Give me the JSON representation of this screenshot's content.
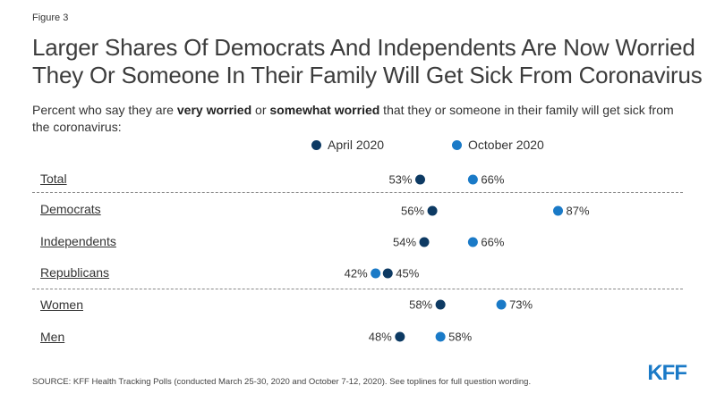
{
  "figure_label": "Figure 3",
  "title": "Larger Shares Of Democrats And Independents Are Now Worried They Or Someone In Their Family Will Get Sick From Coronavirus",
  "subtitle": {
    "part1": "Percent who say they are ",
    "bold1": "very worried",
    "part2": " or ",
    "bold2": "somewhat worried",
    "part3": " that they or someone in their family will get sick from the coronavirus:"
  },
  "colors": {
    "april": "#0d3a63",
    "october": "#1a7ac7"
  },
  "source": "SOURCE: KFF Health Tracking Polls (conducted March 25-30, 2020 and October 7-12, 2020). See toplines for full question wording.",
  "logo": "KFF",
  "chart_data": {
    "type": "scatter",
    "series": [
      {
        "name": "April 2020",
        "values": [
          53,
          56,
          54,
          45,
          58,
          48
        ]
      },
      {
        "name": "October 2020",
        "values": [
          66,
          87,
          66,
          42,
          73,
          58
        ]
      }
    ],
    "categories": [
      "Total",
      "Democrats",
      "Independents",
      "Republicans",
      "Women",
      "Men"
    ],
    "labels": {
      "april": [
        "53%",
        "56%",
        "54%",
        "45%",
        "58%",
        "48%"
      ],
      "october": [
        "66%",
        "87%",
        "66%",
        "42%",
        "73%",
        "58%"
      ]
    },
    "legend_position": "top"
  }
}
